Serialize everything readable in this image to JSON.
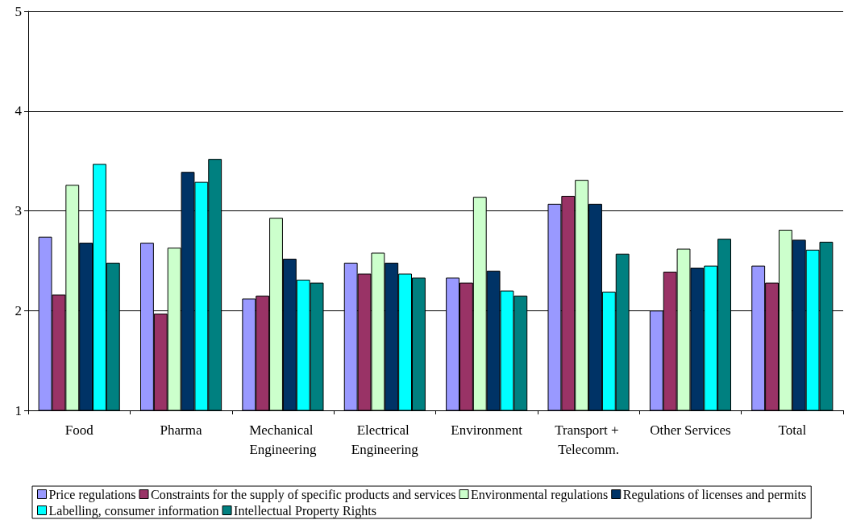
{
  "chart_data": {
    "type": "bar",
    "categories": [
      "Food",
      "Pharma",
      "Mechanical Engineering",
      "Electrical Engineering",
      "Environment",
      "Transport + Telecomm.",
      "Other Services",
      "Total"
    ],
    "series": [
      {
        "name": "Price regulations",
        "color": "#9999ff",
        "values": [
          2.74,
          2.68,
          2.12,
          2.48,
          2.33,
          3.07,
          2.0,
          2.45
        ]
      },
      {
        "name": "Constraints for the supply of specific products and services",
        "color": "#993366",
        "values": [
          2.16,
          1.97,
          2.15,
          2.37,
          2.28,
          3.15,
          2.39,
          2.28
        ]
      },
      {
        "name": "Environmental regulations",
        "color": "#ccffcc",
        "values": [
          3.26,
          2.63,
          2.93,
          2.58,
          3.14,
          3.31,
          2.62,
          2.81
        ]
      },
      {
        "name": "Regulations of licenses and permits",
        "color": "#003366",
        "values": [
          2.68,
          3.39,
          2.52,
          2.48,
          2.4,
          3.07,
          2.43,
          2.71
        ]
      },
      {
        "name": "Labelling, consumer information",
        "color": "#00ffff",
        "values": [
          3.47,
          3.29,
          2.31,
          2.37,
          2.2,
          2.19,
          2.45,
          2.61
        ]
      },
      {
        "name": "Intellectual Property Rights",
        "color": "#008080",
        "values": [
          2.48,
          3.52,
          2.28,
          2.33,
          2.15,
          2.57,
          2.72,
          2.69
        ]
      }
    ],
    "ylim": [
      1,
      5
    ],
    "yticks": [
      1,
      2,
      3,
      4,
      5
    ],
    "grid": "y",
    "legend": "bottom"
  }
}
